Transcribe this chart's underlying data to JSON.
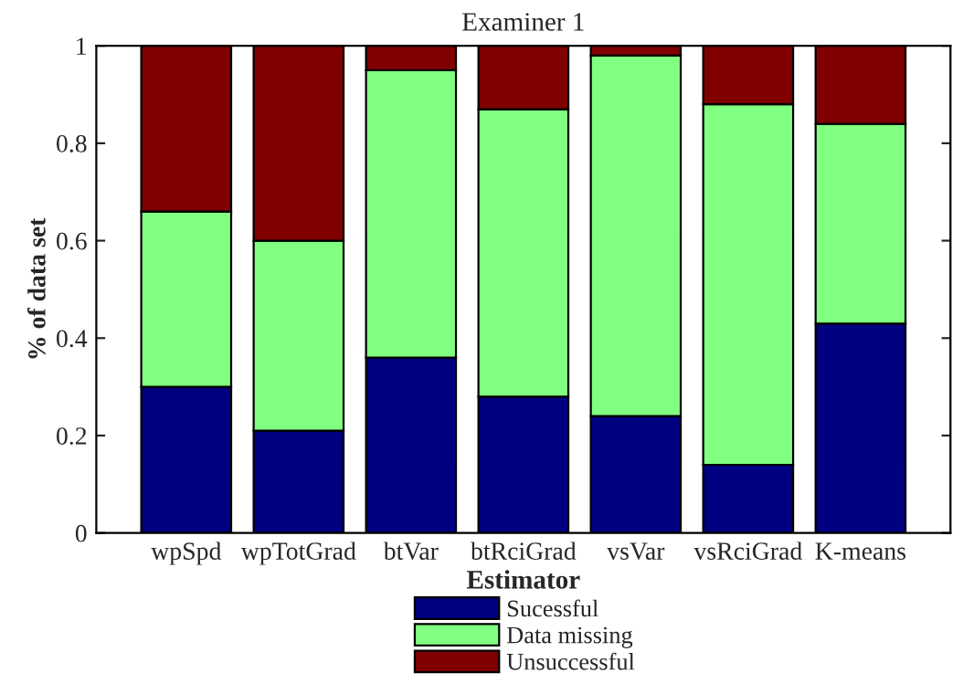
{
  "chart_data": {
    "type": "bar",
    "title": "Examiner 1",
    "xlabel": "Estimator",
    "ylabel": "% of data set",
    "categories": [
      "wpSpd",
      "wpTotGrad",
      "btVar",
      "btRciGrad",
      "vsVar",
      "vsRciGrad",
      "K-means"
    ],
    "stacked": true,
    "series": [
      {
        "name": "Sucessful",
        "color": "#000080",
        "values": [
          0.3,
          0.21,
          0.36,
          0.28,
          0.24,
          0.14,
          0.43
        ]
      },
      {
        "name": "Data missing",
        "color": "#80ff80",
        "values": [
          0.36,
          0.39,
          0.59,
          0.59,
          0.74,
          0.74,
          0.41
        ]
      },
      {
        "name": "Unsuccessful",
        "color": "#800000",
        "values": [
          0.34,
          0.4,
          0.05,
          0.13,
          0.02,
          0.12,
          0.16
        ]
      }
    ],
    "ylim": [
      0,
      1
    ],
    "yticks": [
      0,
      0.2,
      0.4,
      0.6,
      0.8,
      1
    ],
    "grid": false,
    "legend": "bottom"
  }
}
